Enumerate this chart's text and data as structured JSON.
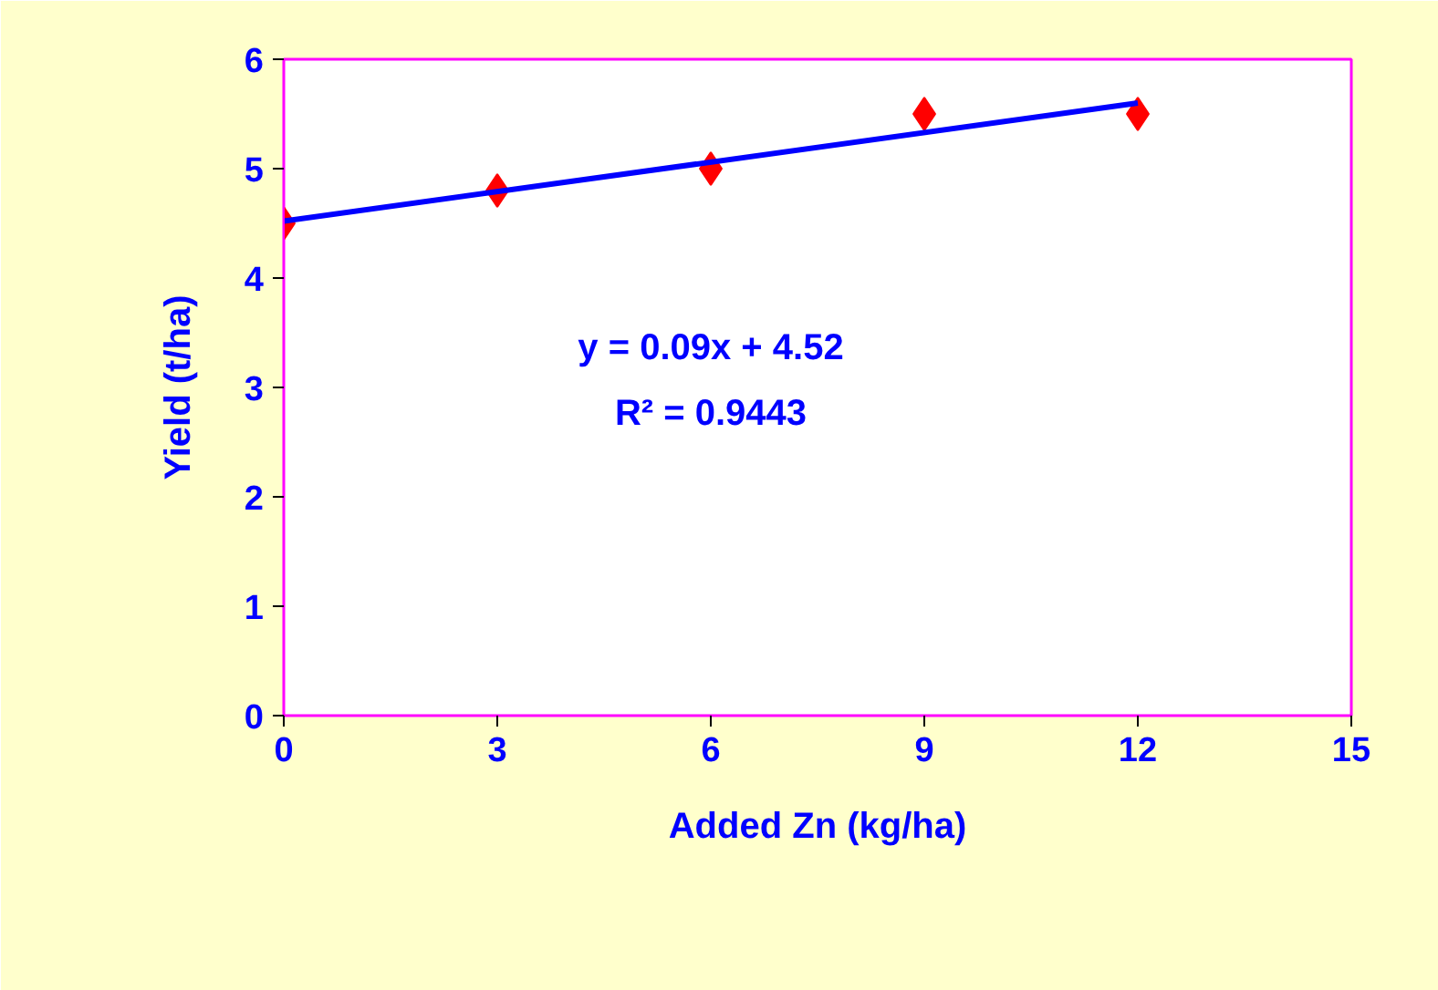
{
  "chart_data": {
    "type": "scatter",
    "xlabel": "Added Zn (kg/ha)",
    "ylabel": "Yield (t/ha)",
    "series": [
      {
        "color": "#ff0000",
        "marker": "diamond",
        "x": [
          0,
          3,
          6,
          9,
          12
        ],
        "values": [
          4.5,
          4.8,
          5.0,
          5.5,
          5.5
        ]
      },
      {
        "type": "line",
        "color": "#0000ff",
        "marker": "none",
        "x": [
          0,
          12
        ],
        "values": [
          4.52,
          5.6
        ]
      }
    ],
    "xlim": [
      0,
      15
    ],
    "xticks": [
      0,
      3,
      6,
      9,
      12,
      15
    ],
    "ylim": [
      0,
      6
    ],
    "yticks": [
      0,
      1,
      2,
      3,
      4,
      5,
      6
    ],
    "grid": false,
    "annotations": [
      "y = 0.09x + 4.52",
      "R² = 0.9443"
    ]
  }
}
